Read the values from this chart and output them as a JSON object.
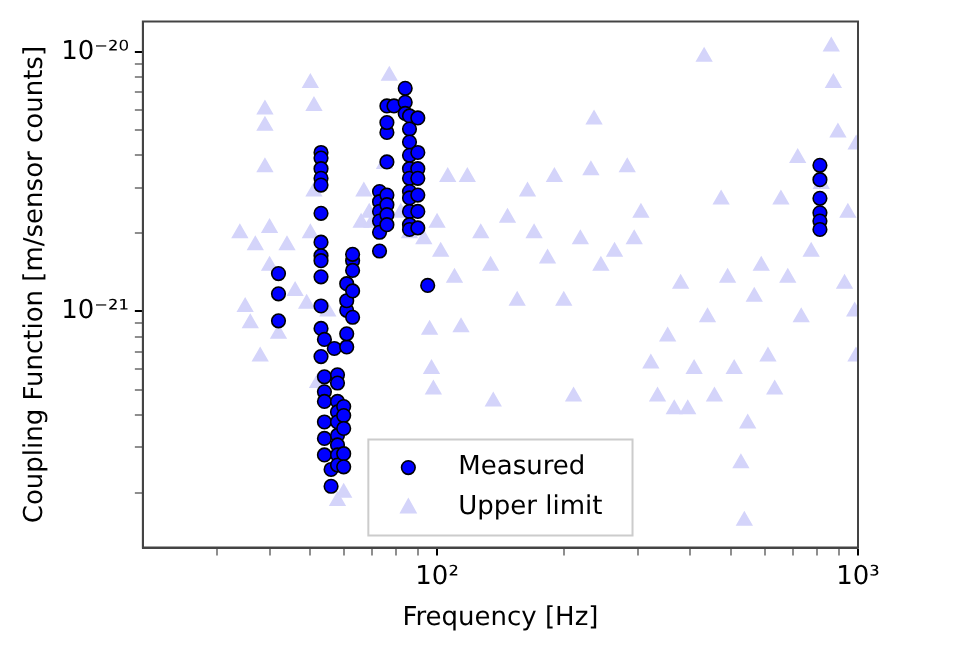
{
  "chart_data": {
    "type": "scatter",
    "xlabel": "Frequency [Hz]",
    "ylabel": "Coupling Function [m/sensor counts]",
    "log": "xy",
    "legend": "bottom",
    "xlim": [
      20,
      1000
    ],
    "ylim": [
      1.23e-22,
      1.31e-20
    ],
    "xticks": [
      {
        "value": 30,
        "label": null
      },
      {
        "value": 40,
        "label": null
      },
      {
        "value": 50,
        "label": null
      },
      {
        "value": 60,
        "label": null
      },
      {
        "value": 70,
        "label": null
      },
      {
        "value": 80,
        "label": null
      },
      {
        "value": 90,
        "label": null
      },
      {
        "value": 100,
        "label": "10²"
      },
      {
        "value": 200,
        "label": null
      },
      {
        "value": 300,
        "label": null
      },
      {
        "value": 400,
        "label": null
      },
      {
        "value": 500,
        "label": null
      },
      {
        "value": 600,
        "label": null
      },
      {
        "value": 700,
        "label": null
      },
      {
        "value": 800,
        "label": null
      },
      {
        "value": 900,
        "label": null
      },
      {
        "value": 1000,
        "label": "10³"
      }
    ],
    "yticks": [
      {
        "value": 2e-22,
        "label": null
      },
      {
        "value": 3e-22,
        "label": null
      },
      {
        "value": 4e-22,
        "label": null
      },
      {
        "value": 5e-22,
        "label": null
      },
      {
        "value": 6e-22,
        "label": null
      },
      {
        "value": 7e-22,
        "label": null
      },
      {
        "value": 8e-22,
        "label": null
      },
      {
        "value": 9e-22,
        "label": null
      },
      {
        "value": 1e-21,
        "label": "10⁻²¹"
      },
      {
        "value": 2e-21,
        "label": null
      },
      {
        "value": 3e-21,
        "label": null
      },
      {
        "value": 4e-21,
        "label": null
      },
      {
        "value": 5e-21,
        "label": null
      },
      {
        "value": 6e-21,
        "label": null
      },
      {
        "value": 7e-21,
        "label": null
      },
      {
        "value": 8e-21,
        "label": null
      },
      {
        "value": 9e-21,
        "label": null
      },
      {
        "value": 1e-20,
        "label": "10⁻²⁰"
      }
    ],
    "series": [
      {
        "name": "Measured",
        "marker": "circle",
        "color": "#0000ff",
        "x": [
          42,
          42,
          42,
          53,
          53,
          53,
          53,
          53,
          53,
          53,
          53,
          53,
          53,
          53,
          53,
          53,
          54,
          54,
          54,
          54,
          54,
          54,
          54,
          56,
          56,
          57,
          58,
          58,
          58,
          58,
          58,
          58,
          58,
          58,
          58,
          60,
          60,
          60,
          60,
          60,
          61,
          61,
          61,
          61,
          61,
          63,
          63,
          63,
          63,
          63,
          73,
          73,
          73,
          73,
          73,
          73,
          76,
          76,
          76,
          76,
          76,
          76,
          76,
          76,
          79,
          84,
          84,
          84,
          86,
          86,
          86,
          86,
          86,
          86,
          86,
          86,
          86,
          86,
          86,
          90,
          90,
          90,
          90,
          90,
          90,
          90,
          95,
          812,
          812,
          812,
          812,
          812,
          812
        ],
        "values": [
          1.4e-21,
          1.17e-21,
          9.2e-22,
          4.1e-21,
          3.9e-21,
          3.55e-21,
          3.26e-21,
          3.07e-21,
          2.39e-21,
          1.85e-21,
          1.64e-21,
          1.57e-21,
          1.36e-21,
          1.05e-21,
          8.6e-22,
          6.7e-22,
          7.8e-22,
          5.6e-22,
          4.9e-22,
          4.5e-22,
          3.75e-22,
          3.24e-22,
          2.8e-22,
          2.46e-22,
          2.12e-22,
          7.2e-22,
          5.7e-22,
          5.3e-22,
          4.5e-22,
          4.1e-22,
          3.75e-22,
          3.33e-22,
          3.06e-22,
          2.8e-22,
          2.56e-22,
          4.3e-22,
          3.97e-22,
          3.54e-22,
          2.83e-22,
          2.52e-22,
          7.3e-22,
          8.2e-22,
          1.01e-21,
          1.1e-21,
          1.28e-21,
          1.57e-21,
          1.44e-21,
          1.2e-21,
          9.5e-22,
          1.66e-21,
          2.9e-21,
          2.65e-21,
          2.43e-21,
          2.23e-21,
          2.02e-21,
          1.71e-21,
          2.81e-21,
          2.58e-21,
          2.36e-21,
          2.16e-21,
          3.77e-21,
          4.9e-21,
          5.35e-21,
          6.2e-21,
          6.2e-21,
          7.25e-21,
          6.4e-21,
          5.8e-21,
          5.67e-21,
          5.05e-21,
          4.5e-21,
          4e-21,
          3.55e-21,
          3.26e-21,
          2.9e-21,
          2.74e-21,
          2.43e-21,
          2.16e-21,
          2.07e-21,
          5.57e-21,
          4.1e-21,
          3.55e-21,
          3.26e-21,
          2.81e-21,
          2.43e-21,
          2.1e-21,
          1.26e-21,
          3.66e-21,
          3.22e-21,
          2.73e-21,
          2.4e-21,
          2.23e-21,
          2.07e-21
        ]
      },
      {
        "name": "Upper limit",
        "marker": "triangle",
        "color": "#d4d4fa",
        "x": [
          34,
          35,
          36,
          37,
          38,
          39,
          39,
          39,
          40,
          40,
          42,
          44,
          46,
          49,
          50,
          50,
          51,
          51,
          52,
          55,
          58,
          60,
          66,
          67,
          69,
          70,
          75,
          77,
          82,
          86,
          93,
          96,
          97,
          98,
          100,
          102,
          106,
          110,
          114,
          118,
          127,
          134,
          136,
          147,
          155,
          164,
          170,
          183,
          190,
          200,
          211,
          219,
          232,
          236,
          245,
          264,
          283,
          294,
          305,
          322,
          334,
          353,
          366,
          379,
          394,
          408,
          431,
          439,
          456,
          473,
          490,
          508,
          527,
          537,
          547,
          567,
          589,
          611,
          634,
          656,
          681,
          719,
          733,
          774,
          818,
          864,
          874,
          896,
          929,
          946,
          982,
          989,
          990
        ],
        "values": [
          2e-21,
          1.04e-21,
          9e-22,
          1.8e-21,
          6.7e-22,
          6e-21,
          5.2e-21,
          3.6e-21,
          2.1e-21,
          1.5e-21,
          8.2e-22,
          1.8e-21,
          1.2e-21,
          1.07e-21,
          2e-21,
          7.6e-21,
          6.2e-21,
          2.9e-21,
          5.3e-22,
          1e-21,
          1.86e-22,
          2e-22,
          2.2e-21,
          2.9e-21,
          2.4e-21,
          2.2e-21,
          3.7e-21,
          8.1e-21,
          2.4e-21,
          2e-21,
          1.9e-21,
          8.5e-22,
          6e-22,
          5e-22,
          2.2e-21,
          1.7e-21,
          3.3e-21,
          1.35e-21,
          8.7e-22,
          3.3e-21,
          2e-21,
          1.5e-21,
          4.5e-22,
          2.3e-21,
          1.1e-21,
          2.9e-21,
          2e-21,
          1.6e-21,
          3.3e-21,
          1.1e-21,
          4.7e-22,
          1.9e-21,
          3.5e-21,
          5.5e-21,
          1.5e-21,
          1.7e-21,
          3.6e-21,
          1.9e-21,
          2.4e-21,
          6.3e-22,
          4.7e-22,
          8e-22,
          4.2e-22,
          1.28e-21,
          4.2e-22,
          6e-22,
          9.6e-21,
          9.5e-22,
          4.7e-22,
          2.7e-21,
          1.35e-21,
          6e-22,
          2.6e-22,
          1.56e-22,
          3.7e-22,
          1.14e-21,
          1.5e-21,
          6.7e-22,
          5e-22,
          2.7e-21,
          1.35e-21,
          3.9e-21,
          9.5e-22,
          1.7e-21,
          3.1e-21,
          1.05e-20,
          7.6e-21,
          4.9e-21,
          1.28e-21,
          2.4e-21,
          1e-21,
          6.7e-22,
          4.4e-21
        ]
      }
    ]
  }
}
